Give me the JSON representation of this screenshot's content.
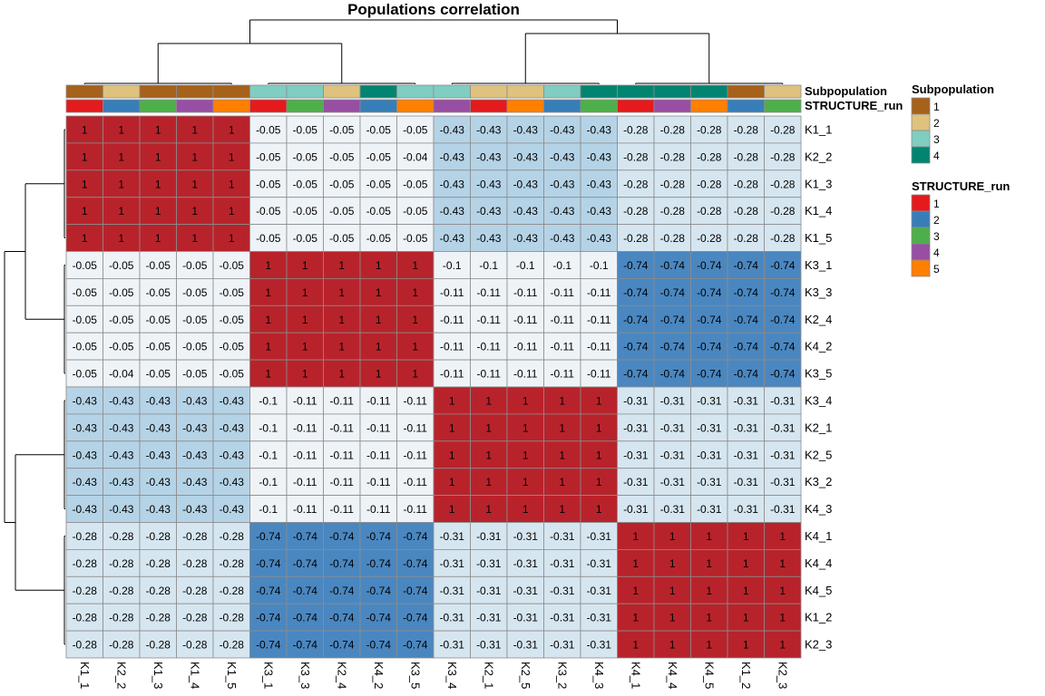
{
  "chart_data": {
    "type": "heatmap",
    "title": "Populations correlation",
    "rows": [
      "K1_1",
      "K2_2",
      "K1_3",
      "K1_4",
      "K1_5",
      "K3_1",
      "K3_3",
      "K2_4",
      "K4_2",
      "K3_5",
      "K3_4",
      "K2_1",
      "K2_5",
      "K3_2",
      "K4_3",
      "K4_1",
      "K4_4",
      "K4_5",
      "K1_2",
      "K2_3"
    ],
    "columns": [
      "K1_1",
      "K2_2",
      "K1_3",
      "K1_4",
      "K1_5",
      "K3_1",
      "K3_3",
      "K2_4",
      "K4_2",
      "K3_5",
      "K3_4",
      "K2_1",
      "K2_5",
      "K3_2",
      "K4_3",
      "K4_1",
      "K4_4",
      "K4_5",
      "K1_2",
      "K2_3"
    ],
    "values": [
      [
        1,
        1,
        1,
        1,
        1,
        -0.05,
        -0.05,
        -0.05,
        -0.05,
        -0.05,
        -0.43,
        -0.43,
        -0.43,
        -0.43,
        -0.43,
        -0.28,
        -0.28,
        -0.28,
        -0.28,
        -0.28
      ],
      [
        1,
        1,
        1,
        1,
        1,
        -0.05,
        -0.05,
        -0.05,
        -0.05,
        -0.04,
        -0.43,
        -0.43,
        -0.43,
        -0.43,
        -0.43,
        -0.28,
        -0.28,
        -0.28,
        -0.28,
        -0.28
      ],
      [
        1,
        1,
        1,
        1,
        1,
        -0.05,
        -0.05,
        -0.05,
        -0.05,
        -0.05,
        -0.43,
        -0.43,
        -0.43,
        -0.43,
        -0.43,
        -0.28,
        -0.28,
        -0.28,
        -0.28,
        -0.28
      ],
      [
        1,
        1,
        1,
        1,
        1,
        -0.05,
        -0.05,
        -0.05,
        -0.05,
        -0.05,
        -0.43,
        -0.43,
        -0.43,
        -0.43,
        -0.43,
        -0.28,
        -0.28,
        -0.28,
        -0.28,
        -0.28
      ],
      [
        1,
        1,
        1,
        1,
        1,
        -0.05,
        -0.05,
        -0.05,
        -0.05,
        -0.05,
        -0.43,
        -0.43,
        -0.43,
        -0.43,
        -0.43,
        -0.28,
        -0.28,
        -0.28,
        -0.28,
        -0.28
      ],
      [
        -0.05,
        -0.05,
        -0.05,
        -0.05,
        -0.05,
        1,
        1,
        1,
        1,
        1,
        -0.1,
        -0.1,
        -0.1,
        -0.1,
        -0.1,
        -0.74,
        -0.74,
        -0.74,
        -0.74,
        -0.74
      ],
      [
        -0.05,
        -0.05,
        -0.05,
        -0.05,
        -0.05,
        1,
        1,
        1,
        1,
        1,
        -0.11,
        -0.11,
        -0.11,
        -0.11,
        -0.11,
        -0.74,
        -0.74,
        -0.74,
        -0.74,
        -0.74
      ],
      [
        -0.05,
        -0.05,
        -0.05,
        -0.05,
        -0.05,
        1,
        1,
        1,
        1,
        1,
        -0.11,
        -0.11,
        -0.11,
        -0.11,
        -0.11,
        -0.74,
        -0.74,
        -0.74,
        -0.74,
        -0.74
      ],
      [
        -0.05,
        -0.05,
        -0.05,
        -0.05,
        -0.05,
        1,
        1,
        1,
        1,
        1,
        -0.11,
        -0.11,
        -0.11,
        -0.11,
        -0.11,
        -0.74,
        -0.74,
        -0.74,
        -0.74,
        -0.74
      ],
      [
        -0.05,
        -0.04,
        -0.05,
        -0.05,
        -0.05,
        1,
        1,
        1,
        1,
        1,
        -0.11,
        -0.11,
        -0.11,
        -0.11,
        -0.11,
        -0.74,
        -0.74,
        -0.74,
        -0.74,
        -0.74
      ],
      [
        -0.43,
        -0.43,
        -0.43,
        -0.43,
        -0.43,
        -0.1,
        -0.11,
        -0.11,
        -0.11,
        -0.11,
        1,
        1,
        1,
        1,
        1,
        -0.31,
        -0.31,
        -0.31,
        -0.31,
        -0.31
      ],
      [
        -0.43,
        -0.43,
        -0.43,
        -0.43,
        -0.43,
        -0.1,
        -0.11,
        -0.11,
        -0.11,
        -0.11,
        1,
        1,
        1,
        1,
        1,
        -0.31,
        -0.31,
        -0.31,
        -0.31,
        -0.31
      ],
      [
        -0.43,
        -0.43,
        -0.43,
        -0.43,
        -0.43,
        -0.1,
        -0.11,
        -0.11,
        -0.11,
        -0.11,
        1,
        1,
        1,
        1,
        1,
        -0.31,
        -0.31,
        -0.31,
        -0.31,
        -0.31
      ],
      [
        -0.43,
        -0.43,
        -0.43,
        -0.43,
        -0.43,
        -0.1,
        -0.11,
        -0.11,
        -0.11,
        -0.11,
        1,
        1,
        1,
        1,
        1,
        -0.31,
        -0.31,
        -0.31,
        -0.31,
        -0.31
      ],
      [
        -0.43,
        -0.43,
        -0.43,
        -0.43,
        -0.43,
        -0.1,
        -0.11,
        -0.11,
        -0.11,
        -0.11,
        1,
        1,
        1,
        1,
        1,
        -0.31,
        -0.31,
        -0.31,
        -0.31,
        -0.31
      ],
      [
        -0.28,
        -0.28,
        -0.28,
        -0.28,
        -0.28,
        -0.74,
        -0.74,
        -0.74,
        -0.74,
        -0.74,
        -0.31,
        -0.31,
        -0.31,
        -0.31,
        -0.31,
        1,
        1,
        1,
        1,
        1
      ],
      [
        -0.28,
        -0.28,
        -0.28,
        -0.28,
        -0.28,
        -0.74,
        -0.74,
        -0.74,
        -0.74,
        -0.74,
        -0.31,
        -0.31,
        -0.31,
        -0.31,
        -0.31,
        1,
        1,
        1,
        1,
        1
      ],
      [
        -0.28,
        -0.28,
        -0.28,
        -0.28,
        -0.28,
        -0.74,
        -0.74,
        -0.74,
        -0.74,
        -0.74,
        -0.31,
        -0.31,
        -0.31,
        -0.31,
        -0.31,
        1,
        1,
        1,
        1,
        1
      ],
      [
        -0.28,
        -0.28,
        -0.28,
        -0.28,
        -0.28,
        -0.74,
        -0.74,
        -0.74,
        -0.74,
        -0.74,
        -0.31,
        -0.31,
        -0.31,
        -0.31,
        -0.31,
        1,
        1,
        1,
        1,
        1
      ],
      [
        -0.28,
        -0.28,
        -0.28,
        -0.28,
        -0.28,
        -0.74,
        -0.74,
        -0.74,
        -0.74,
        -0.74,
        -0.31,
        -0.31,
        -0.31,
        -0.31,
        -0.31,
        1,
        1,
        1,
        1,
        1
      ]
    ],
    "annotations": {
      "subpopulation_label": "Subpopulation",
      "structure_label": "STRUCTURE_run",
      "subpopulation": [
        1,
        2,
        1,
        1,
        1,
        3,
        3,
        2,
        4,
        3,
        3,
        2,
        2,
        3,
        4,
        4,
        4,
        4,
        1,
        2
      ],
      "structure_run": [
        1,
        2,
        3,
        4,
        5,
        1,
        3,
        4,
        2,
        5,
        4,
        1,
        5,
        2,
        3,
        1,
        4,
        5,
        2,
        3
      ]
    },
    "color_scale": {
      "strong_negative": "#4a87c0",
      "moderate_negative": "#b5d3e6",
      "weak_negative": "#d6e6f0",
      "near_zero": "#eef3f7",
      "positive": "#b8232b",
      "border": "#8c8c8c"
    },
    "legend_placement": "right",
    "legends": [
      {
        "title": "Subpopulation",
        "items": [
          {
            "label": "1",
            "color": "#a6611a"
          },
          {
            "label": "2",
            "color": "#dfc27d"
          },
          {
            "label": "3",
            "color": "#80cdc1"
          },
          {
            "label": "4",
            "color": "#018571"
          }
        ]
      },
      {
        "title": "STRUCTURE_run",
        "items": [
          {
            "label": "1",
            "color": "#e41a1c"
          },
          {
            "label": "2",
            "color": "#377eb8"
          },
          {
            "label": "3",
            "color": "#4daf4a"
          },
          {
            "label": "4",
            "color": "#984ea3"
          },
          {
            "label": "5",
            "color": "#ff7f00"
          }
        ]
      }
    ]
  }
}
